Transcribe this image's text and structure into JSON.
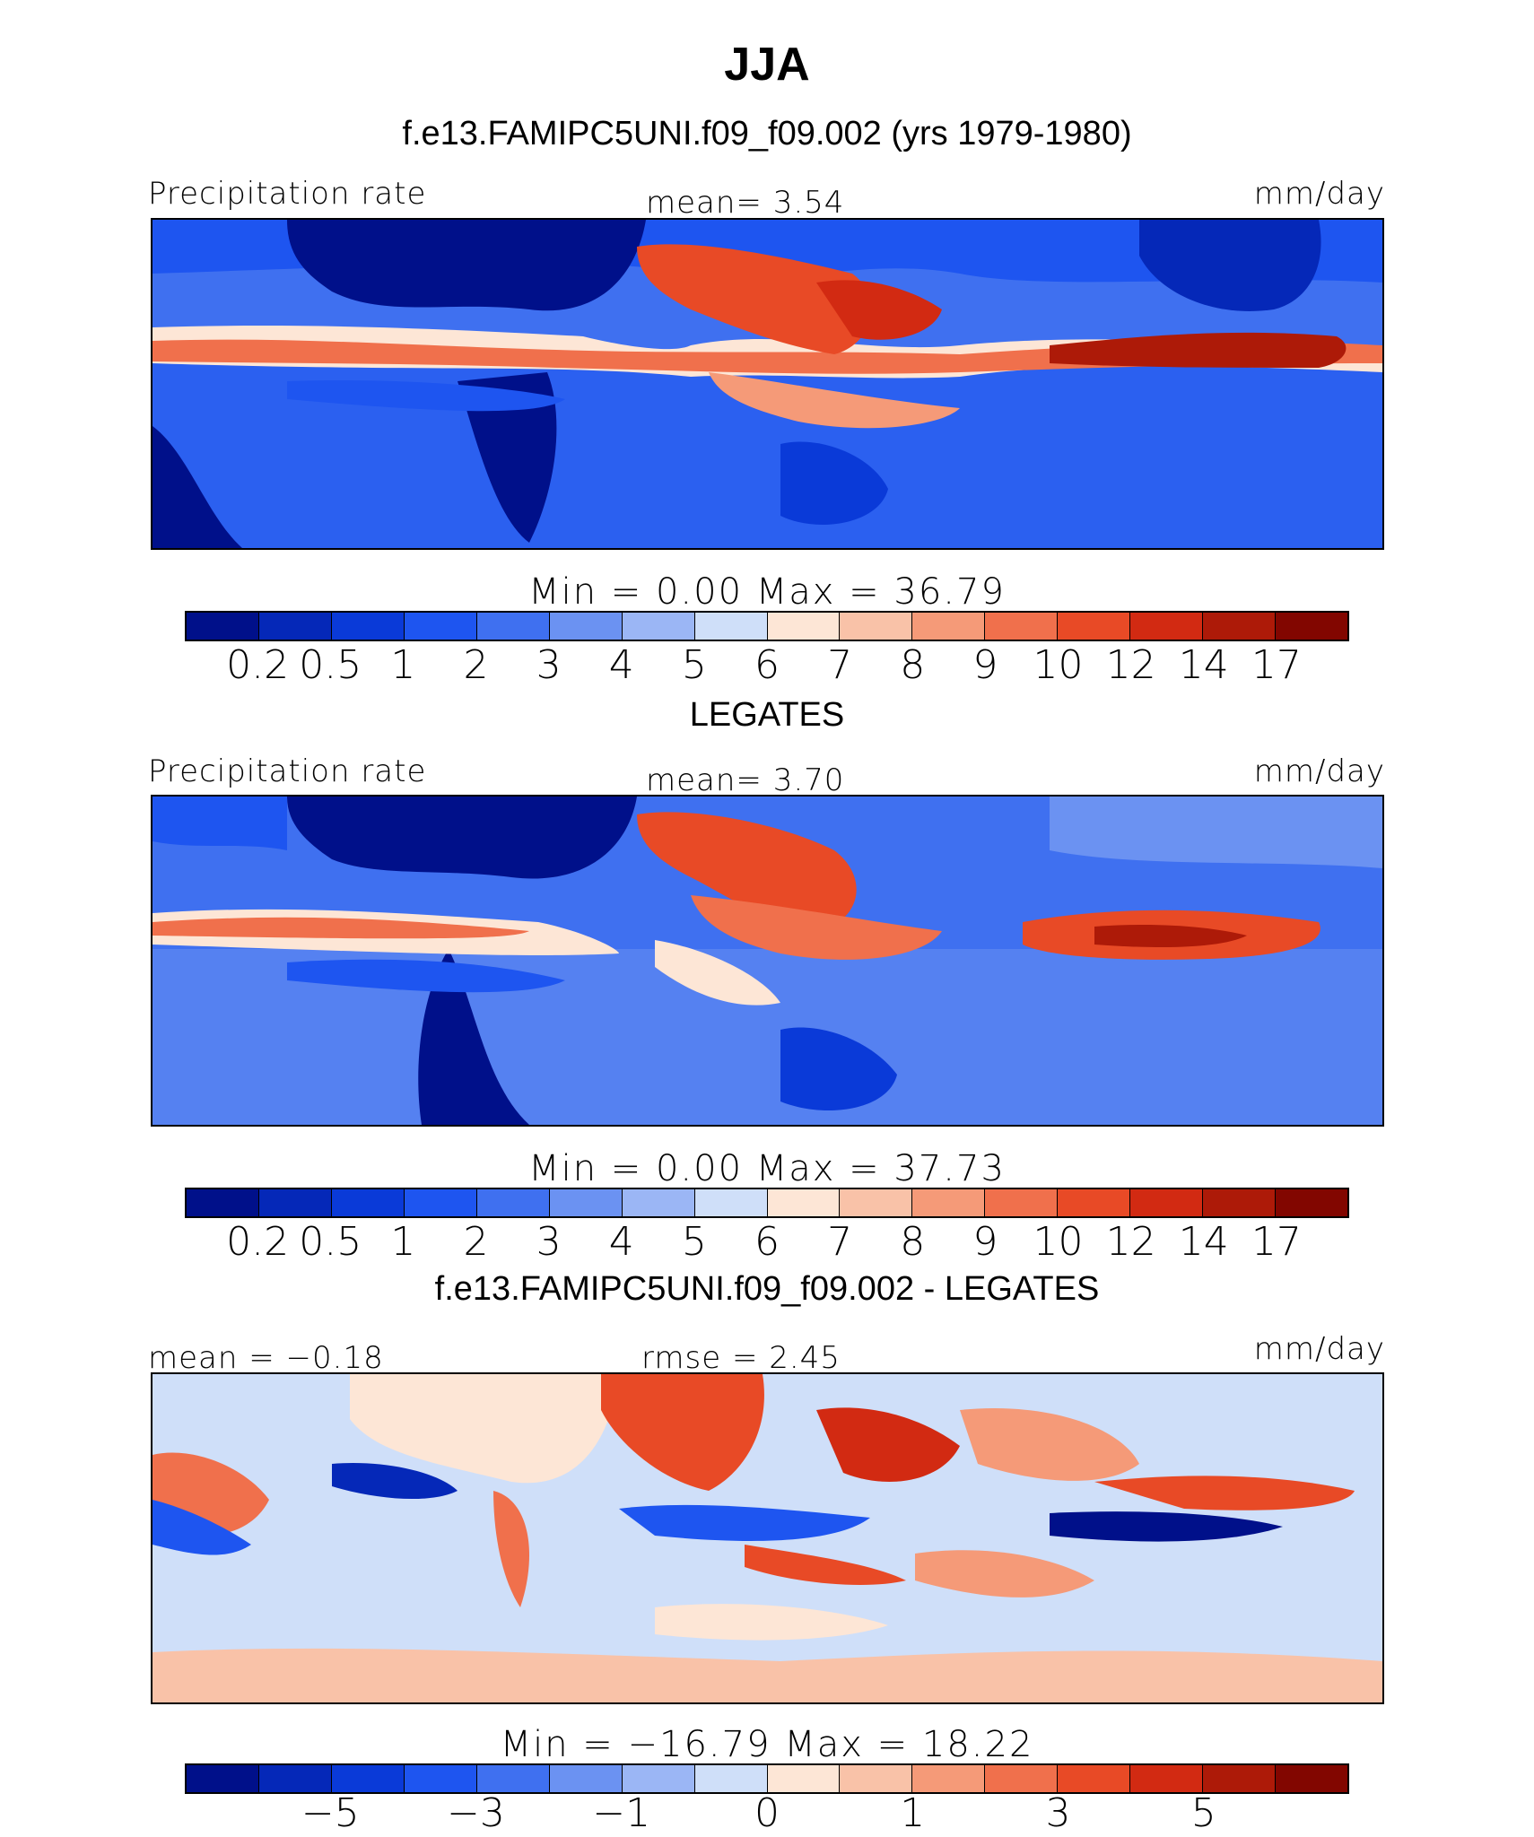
{
  "figure": {
    "season": "JJA",
    "subtitle": "f.e13.FAMIPC5UNI.f09_f09.002 (yrs 1979-1980)"
  },
  "panels": [
    {
      "left_label": "Precipitation rate",
      "center_label": "mean=    3.54",
      "right_label": "mm/day",
      "minmax": "Min  =    0.00  Max  =    36.79",
      "palette": [
        "#00108a",
        "#0528b8",
        "#0a3ad8",
        "#1e55f0",
        "#3f70f0",
        "#6b92f2",
        "#9bb6f5",
        "#cfdff9",
        "#fde6d6",
        "#f9c2a8",
        "#f59a78",
        "#f0704c",
        "#e84a26",
        "#d22a12",
        "#ad1a08",
        "#820600"
      ],
      "ticks": [
        "0.2",
        "0.5",
        "1",
        "2",
        "3",
        "4",
        "5",
        "6",
        "7",
        "8",
        "9",
        "10",
        "12",
        "14",
        "17"
      ]
    },
    {
      "title": "LEGATES",
      "left_label": "Precipitation rate",
      "center_label": "mean=    3.70",
      "right_label": "mm/day",
      "minmax": "Min  =    0.00  Max  =    37.73",
      "palette": [
        "#00108a",
        "#0528b8",
        "#0a3ad8",
        "#1e55f0",
        "#3f70f0",
        "#6b92f2",
        "#9bb6f5",
        "#cfdff9",
        "#fde6d6",
        "#f9c2a8",
        "#f59a78",
        "#f0704c",
        "#e84a26",
        "#d22a12",
        "#ad1a08",
        "#820600"
      ],
      "ticks": [
        "0.2",
        "0.5",
        "1",
        "2",
        "3",
        "4",
        "5",
        "6",
        "7",
        "8",
        "9",
        "10",
        "12",
        "14",
        "17"
      ]
    },
    {
      "title": "f.e13.FAMIPC5UNI.f09_f09.002 - LEGATES",
      "left_label": "mean  =   −0.18",
      "center_label": "rmse  =    2.45",
      "right_label": "mm/day",
      "minmax": "Min  =  −16.79  Max  =    18.22",
      "palette": [
        "#00108a",
        "#0528b8",
        "#0a3ad8",
        "#1e55f0",
        "#3f70f0",
        "#6b92f2",
        "#9bb6f5",
        "#cfdff9",
        "#fde6d6",
        "#f9c2a8",
        "#f59a78",
        "#f0704c",
        "#e84a26",
        "#d22a12",
        "#ad1a08",
        "#820600"
      ],
      "ticks": [
        "−5",
        "−3",
        "−1",
        "0",
        "1",
        "3",
        "5"
      ]
    }
  ]
}
